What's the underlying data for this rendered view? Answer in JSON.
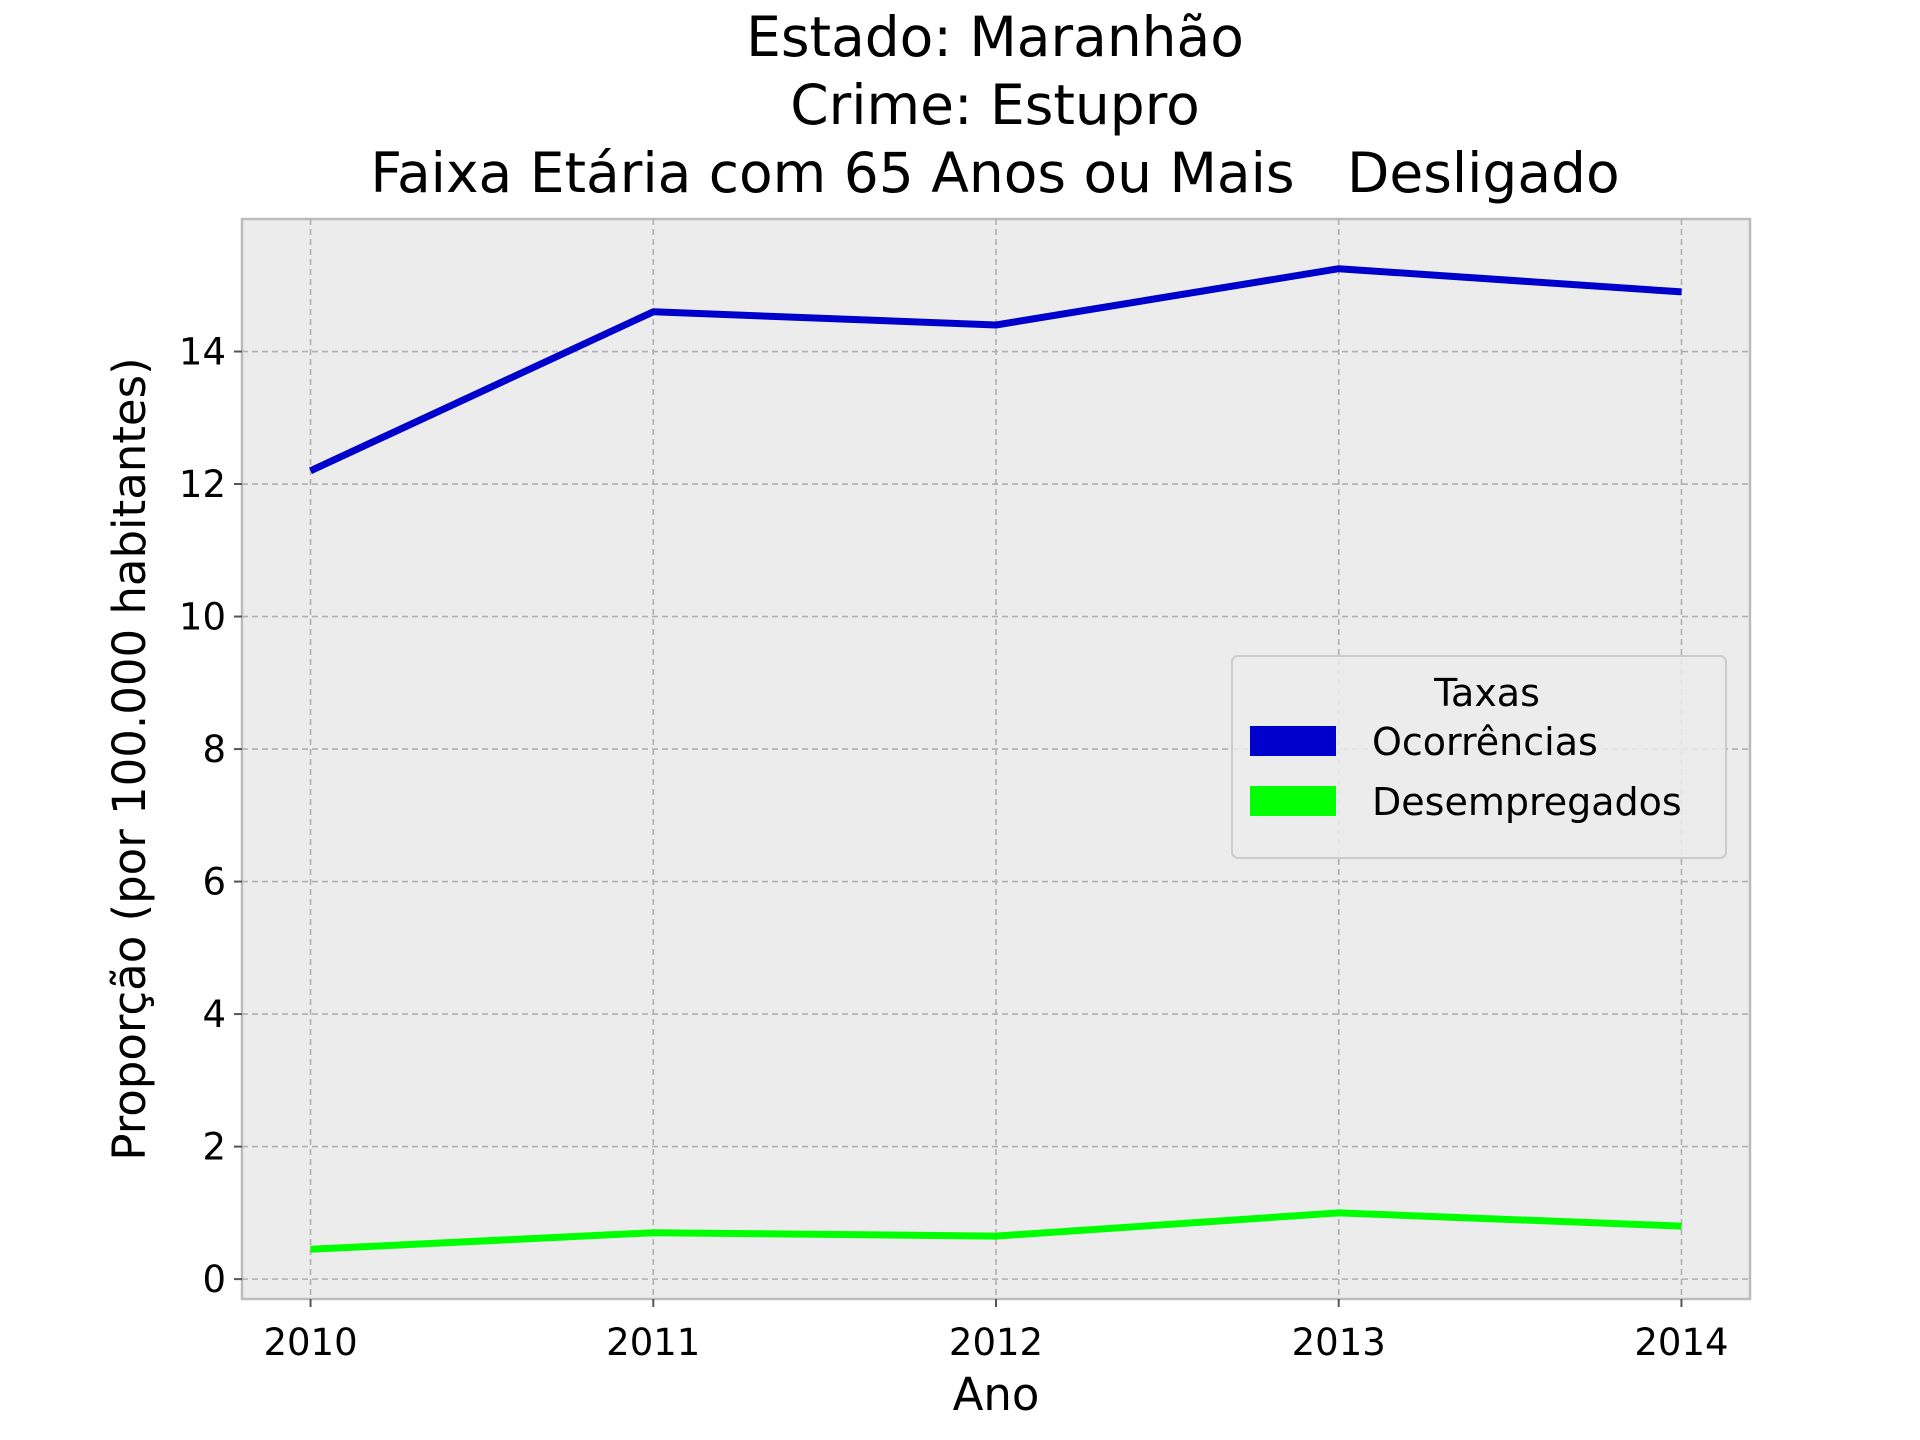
{
  "chart_data": {
    "type": "line",
    "title_lines": [
      "Estado: Maranhão",
      "Crime: Estupro",
      "Faixa Etária com 65 Anos ou Mais   Desligado"
    ],
    "xlabel": "Ano",
    "ylabel": "Proporção (por 100.000 habitantes)",
    "x": [
      2010,
      2011,
      2012,
      2013,
      2014
    ],
    "x_tick_labels": [
      "2010",
      "2011",
      "2012",
      "2013",
      "2014"
    ],
    "y_ticks": [
      0,
      2,
      4,
      6,
      8,
      10,
      12,
      14
    ],
    "y_tick_labels": [
      "0",
      "2",
      "4",
      "6",
      "8",
      "10",
      "12",
      "14"
    ],
    "xlim": [
      2009.8,
      2014.2
    ],
    "ylim": [
      -0.3,
      16.0
    ],
    "grid": true,
    "background": "#ececec",
    "legend": {
      "title": "Taxas",
      "placement": "center-right"
    },
    "series": [
      {
        "name": "Ocorrências",
        "color": "#0000cd",
        "values": [
          12.2,
          14.6,
          14.4,
          15.25,
          14.9
        ]
      },
      {
        "name": "Desempregados",
        "color": "#00ff00",
        "values": [
          0.45,
          0.7,
          0.65,
          1.0,
          0.8
        ]
      }
    ]
  }
}
